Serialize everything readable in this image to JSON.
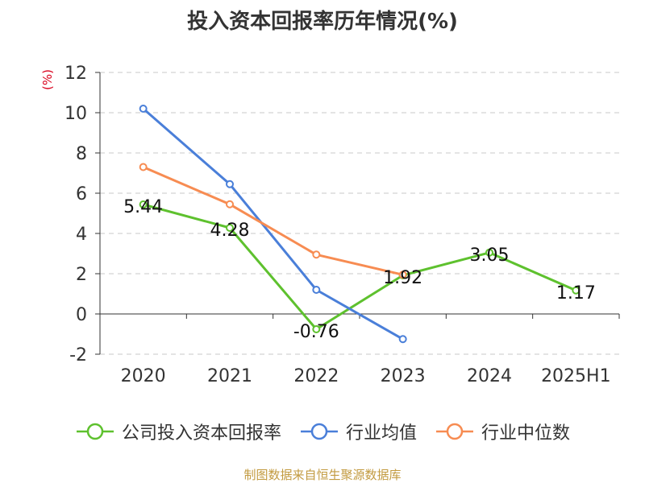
{
  "chart_data": {
    "type": "line",
    "title": "投入资本回报率历年情况(%)",
    "ylabel": "(%)",
    "categories": [
      "2020",
      "2021",
      "2022",
      "2023",
      "2024",
      "2025H1"
    ],
    "ylim": [
      -2,
      12
    ],
    "yticks": [
      -2,
      0,
      2,
      4,
      6,
      8,
      10,
      12
    ],
    "grid": true,
    "legend_position": "bottom",
    "series": [
      {
        "name": "公司投入资本回报率",
        "color": "#5ec12e",
        "values": [
          5.44,
          4.28,
          -0.76,
          1.92,
          3.05,
          1.17
        ],
        "labels": [
          "5.44",
          "4.28",
          "-0.76",
          "1.92",
          "3.05",
          "1.17"
        ]
      },
      {
        "name": "行业均值",
        "color": "#4a7fd9",
        "values": [
          10.2,
          6.45,
          1.2,
          -1.25,
          null,
          null
        ]
      },
      {
        "name": "行业中位数",
        "color": "#f78c52",
        "values": [
          7.3,
          5.45,
          2.95,
          1.95,
          null,
          null
        ]
      }
    ]
  },
  "source": "制图数据来自恒生聚源数据库"
}
